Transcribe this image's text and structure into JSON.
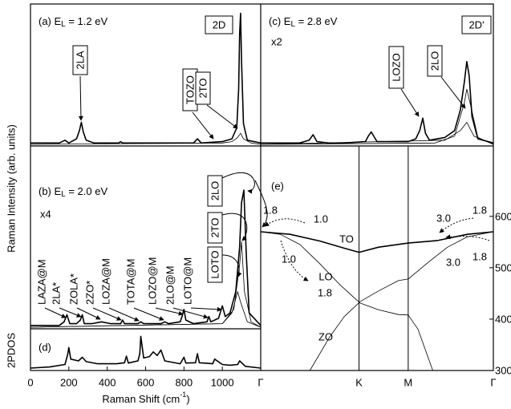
{
  "ylabel": "Raman Intensity (arb. units)",
  "chart_data": [
    {
      "type": "line",
      "title": [
        "(a) E",
        "L",
        " = 1.2 eV"
      ],
      "box_label": "2D",
      "annotations": [
        "2LA",
        "TOZO",
        "2TO"
      ],
      "xlim": [
        0,
        1200
      ],
      "ylim": [
        0,
        100
      ],
      "series": [
        {
          "color": "#000000",
          "x": [
            0,
            150,
            180,
            200,
            240,
            255,
            265,
            275,
            290,
            330,
            460,
            470,
            480,
            600,
            850,
            870,
            890,
            1000,
            1050,
            1075,
            1085,
            1090,
            1095,
            1100,
            1110,
            1130,
            1200
          ],
          "values": [
            1,
            1,
            3,
            1,
            4,
            10,
            16,
            9,
            3,
            1,
            1,
            2,
            1,
            1,
            1,
            4,
            1,
            2,
            4,
            12,
            40,
            80,
            95,
            60,
            15,
            3,
            1
          ]
        },
        {
          "color": "#000000",
          "x": [
            0,
            1000,
            1050,
            1080,
            1095,
            1110,
            1150,
            1200
          ],
          "values": [
            0,
            1,
            2,
            5,
            8,
            4,
            1,
            0
          ]
        }
      ]
    },
    {
      "type": "line",
      "title": [
        "(c) E",
        "L",
        " = 2.8 eV"
      ],
      "scale": "x2",
      "box_label": "2D'",
      "annotations": [
        "LOZO",
        "2LO"
      ],
      "xlim": [
        0,
        1200
      ],
      "ylim": [
        0,
        100
      ],
      "series": [
        {
          "color": "#000000",
          "x": [
            0,
            200,
            250,
            270,
            290,
            350,
            430,
            540,
            555,
            570,
            600,
            760,
            800,
            820,
            836,
            850,
            870,
            950,
            1000,
            1030,
            1050,
            1063,
            1075,
            1090,
            1120,
            1200
          ],
          "values": [
            1,
            1,
            3,
            7,
            2,
            1,
            1,
            2,
            6,
            9,
            2,
            2,
            4,
            10,
            19,
            8,
            3,
            5,
            10,
            25,
            45,
            60,
            50,
            20,
            4,
            1
          ]
        },
        {
          "color": "#000000",
          "x": [
            0,
            900,
            1000,
            1050,
            1063,
            1080,
            1120,
            1200
          ],
          "values": [
            0,
            1,
            6,
            30,
            40,
            30,
            5,
            0
          ]
        },
        {
          "color": "#000000",
          "x": [
            0,
            950,
            1030,
            1063,
            1100,
            1200
          ],
          "values": [
            0,
            3,
            10,
            16,
            6,
            0
          ]
        }
      ]
    },
    {
      "type": "line",
      "title": [
        "(b) E",
        "L",
        " = 2.0 eV"
      ],
      "scale": "x4",
      "annotations": [
        "LAZA@M",
        "2LA*",
        "ZOLA*",
        "2ZO*",
        "LOZA@M",
        "TOTA@M",
        "LOZO@M",
        "2LO@M",
        "LOTO@M"
      ],
      "box_labels": [
        "2LO",
        "2TO",
        "LOTO"
      ],
      "xlim": [
        0,
        1200
      ],
      "ylim": [
        0,
        100
      ],
      "series": [
        {
          "color": "#000000",
          "x": [
            0,
            150,
            175,
            190,
            205,
            240,
            260,
            270,
            280,
            320,
            370,
            420,
            470,
            480,
            490,
            560,
            575,
            590,
            680,
            700,
            720,
            780,
            790,
            800,
            810,
            850,
            920,
            930,
            940,
            980,
            1000,
            1015,
            1040,
            1070,
            1090,
            1100,
            1112,
            1125,
            1140,
            1200
          ],
          "values": [
            1,
            1,
            3,
            7,
            2,
            2,
            4,
            7,
            2,
            2,
            3,
            2,
            2,
            4,
            2,
            2,
            3,
            2,
            2,
            3,
            2,
            3,
            6,
            10,
            4,
            2,
            3,
            6,
            3,
            5,
            12,
            6,
            8,
            20,
            45,
            70,
            77,
            40,
            8,
            1
          ]
        },
        {
          "color": "#000000",
          "x": [
            0,
            1000,
            1060,
            1090,
            1100,
            1115,
            1150,
            1200
          ],
          "values": [
            0,
            2,
            10,
            35,
            48,
            20,
            3,
            0
          ]
        },
        {
          "color": "#000000",
          "x": [
            0,
            1000,
            1050,
            1080,
            1095,
            1130,
            1200
          ],
          "values": [
            0,
            2,
            8,
            20,
            14,
            3,
            0
          ]
        }
      ]
    },
    {
      "type": "line",
      "label": "(d)",
      "ylabel": "2PDOS",
      "xlabel": [
        "Raman Shift (cm",
        "-1",
        ")"
      ],
      "xlim": [
        0,
        1200
      ],
      "xticks": [
        0,
        200,
        400,
        600,
        800,
        1000
      ],
      "ylim": [
        0,
        100
      ],
      "series": [
        {
          "color": "#000000",
          "x": [
            0,
            100,
            180,
            195,
            200,
            210,
            250,
            270,
            290,
            350,
            450,
            490,
            500,
            510,
            560,
            570,
            575,
            590,
            620,
            640,
            660,
            680,
            700,
            780,
            800,
            810,
            860,
            870,
            880,
            950,
            960,
            1000,
            1040,
            1080,
            1090,
            1120,
            1200
          ],
          "values": [
            0,
            3,
            10,
            40,
            57,
            25,
            20,
            30,
            18,
            12,
            12,
            15,
            33,
            14,
            20,
            40,
            88,
            28,
            32,
            45,
            35,
            50,
            20,
            12,
            30,
            14,
            15,
            40,
            15,
            12,
            25,
            10,
            8,
            10,
            20,
            5,
            0
          ]
        }
      ]
    },
    {
      "type": "line",
      "label": "(e)",
      "annotations": [
        "1.8",
        "1.0",
        "1.0",
        "1.8",
        "3.0",
        "1.8",
        "3.0",
        "1.8"
      ],
      "xlim": [
        0,
        2.366
      ],
      "xticks": [
        {
          "value": 0,
          "label": "Γ"
        },
        {
          "value": 1,
          "label": "K"
        },
        {
          "value": 1.5,
          "label": "M"
        },
        {
          "value": 2.366,
          "label": "Γ"
        }
      ],
      "ylim": [
        300,
        737
      ],
      "yticks": [
        300,
        400,
        500,
        600
      ],
      "series": [
        {
          "name": "TO",
          "color": "#000000",
          "x": [
            0,
            0.3,
            0.6,
            0.85,
            1,
            1.2,
            1.5,
            1.8,
            2.1,
            2.366
          ],
          "values": [
            570,
            565,
            552,
            538,
            530,
            540,
            548,
            553,
            565,
            570
          ]
        },
        {
          "name": "LO",
          "color": "#000000",
          "x": [
            0,
            0.2,
            0.4,
            0.6,
            0.8,
            1,
            1.2,
            1.4,
            1.5,
            1.7,
            1.9,
            2.1,
            2.366
          ],
          "values": [
            570,
            565,
            545,
            508,
            468,
            433,
            455,
            475,
            478,
            510,
            540,
            560,
            570
          ]
        },
        {
          "name": "ZO",
          "color": "#000000",
          "x": [
            0.5,
            0.7,
            0.85,
            1,
            1.2,
            1.4,
            1.5,
            1.6,
            1.75
          ],
          "values": [
            300,
            365,
            405,
            432,
            418,
            409,
            408,
            380,
            300
          ]
        }
      ]
    }
  ]
}
